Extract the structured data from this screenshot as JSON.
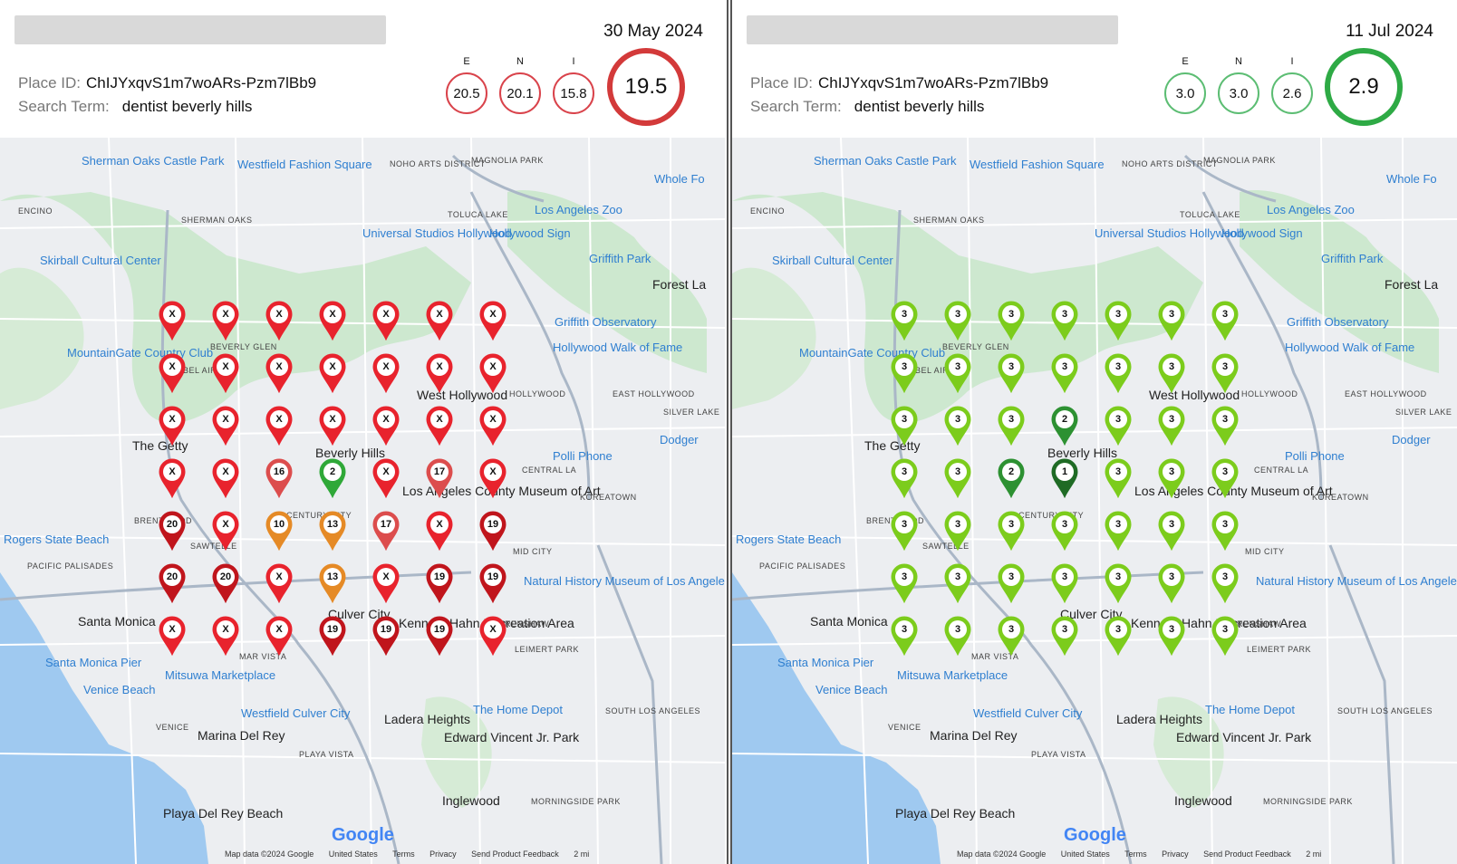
{
  "panels": [
    {
      "date": "30 May 2024",
      "place_id_label": "Place ID:",
      "place_id": "ChIJYxqvS1m7woARs-Pzm7lBb9",
      "search_term_label": "Search Term:",
      "search_term": "dentist beverly hills",
      "metrics": [
        {
          "label": "E",
          "value": "20.5"
        },
        {
          "label": "N",
          "value": "20.1"
        },
        {
          "label": "I",
          "value": "15.8"
        }
      ],
      "score": "19.5",
      "score_color": "#d33a3a",
      "ring_color": "#d9434b",
      "grid": [
        [
          "X",
          "X",
          "X",
          "X",
          "X",
          "X",
          "X"
        ],
        [
          "X",
          "X",
          "X",
          "X",
          "X",
          "X",
          "X"
        ],
        [
          "X",
          "X",
          "X",
          "X",
          "X",
          "X",
          "X"
        ],
        [
          "X",
          "X",
          "16",
          "2",
          "X",
          "17",
          "X"
        ],
        [
          "20",
          "X",
          "10",
          "13",
          "17",
          "X",
          "19"
        ],
        [
          "20",
          "20",
          "X",
          "13",
          "X",
          "19",
          "19"
        ],
        [
          "X",
          "X",
          "X",
          "19",
          "19",
          "19",
          "X"
        ]
      ]
    },
    {
      "date": "11 Jul 2024",
      "place_id_label": "Place ID:",
      "place_id": "ChIJYxqvS1m7woARs-Pzm7lBb9",
      "search_term_label": "Search Term:",
      "search_term": "dentist beverly hills",
      "metrics": [
        {
          "label": "E",
          "value": "3.0"
        },
        {
          "label": "N",
          "value": "3.0"
        },
        {
          "label": "I",
          "value": "2.6"
        }
      ],
      "score": "2.9",
      "score_color": "#2eaa45",
      "ring_color": "#5cbd73",
      "grid": [
        [
          "3",
          "3",
          "3",
          "3",
          "3",
          "3",
          "3"
        ],
        [
          "3",
          "3",
          "3",
          "3",
          "3",
          "3",
          "3"
        ],
        [
          "3",
          "3",
          "3",
          "2",
          "3",
          "3",
          "3"
        ],
        [
          "3",
          "3",
          "2",
          "1",
          "3",
          "3",
          "3"
        ],
        [
          "3",
          "3",
          "3",
          "3",
          "3",
          "3",
          "3"
        ],
        [
          "3",
          "3",
          "3",
          "3",
          "3",
          "3",
          "3"
        ],
        [
          "3",
          "3",
          "3",
          "3",
          "3",
          "3",
          "3"
        ]
      ]
    }
  ],
  "map_labels": {
    "blue": [
      "Sherman Oaks Castle Park",
      "Westfield Fashion Square",
      "Whole Fo",
      "Los Angeles Zoo",
      "Universal Studios Hollywood",
      "Hollywood Sign",
      "Skirball Cultural Center",
      "Griffith Park",
      "MountainGate Country Club",
      "Griffith Observatory",
      "Hollywood Walk of Fame",
      "Polli Phone",
      "Dodger",
      "Rogers State Beach",
      "Natural History Museum of Los Angeles County",
      "Mitsuwa Marketplace",
      "Venice Beach",
      "Westfield Culver City",
      "The Home Depot",
      "Santa Monica Pier"
    ],
    "dark": [
      "The Getty",
      "Beverly Hills",
      "West Hollywood",
      "Los Angeles County Museum of Art",
      "Culver City",
      "Santa Monica",
      "Ladera Heights",
      "Marina Del Rey",
      "Edward Vincent Jr. Park",
      "Inglewood",
      "Playa Del Rey Beach",
      "Forest La",
      "Kenneth Hahn Recreation Area"
    ],
    "caps": [
      "ENCINO",
      "SHERMAN OAKS",
      "NOHO ARTS DISTRICT",
      "MAGNOLIA PARK",
      "TOLUCA LAKE",
      "BEVERLY GLEN",
      "BEL AIR",
      "HOLLYWOOD",
      "EAST HOLLYWOOD",
      "SILVER LAKE",
      "CENTRAL LA",
      "KOREATOWN",
      "BRENTWOOD",
      "CENTURY CITY",
      "SAWTELLE",
      "MID CITY",
      "PACIFIC PALISADES",
      "CRENSHAW",
      "LEIMERT PARK",
      "MAR VISTA",
      "VENICE",
      "PLAYA VISTA",
      "SOUTH LOS ANGELES",
      "MORNINGSIDE PARK"
    ]
  },
  "footer": {
    "map_data": "Map data ©2024 Google",
    "country": "United States",
    "terms": "Terms",
    "privacy": "Privacy",
    "feedback": "Send Product Feedback",
    "scale": "2 mi"
  },
  "google_logo": "Google"
}
